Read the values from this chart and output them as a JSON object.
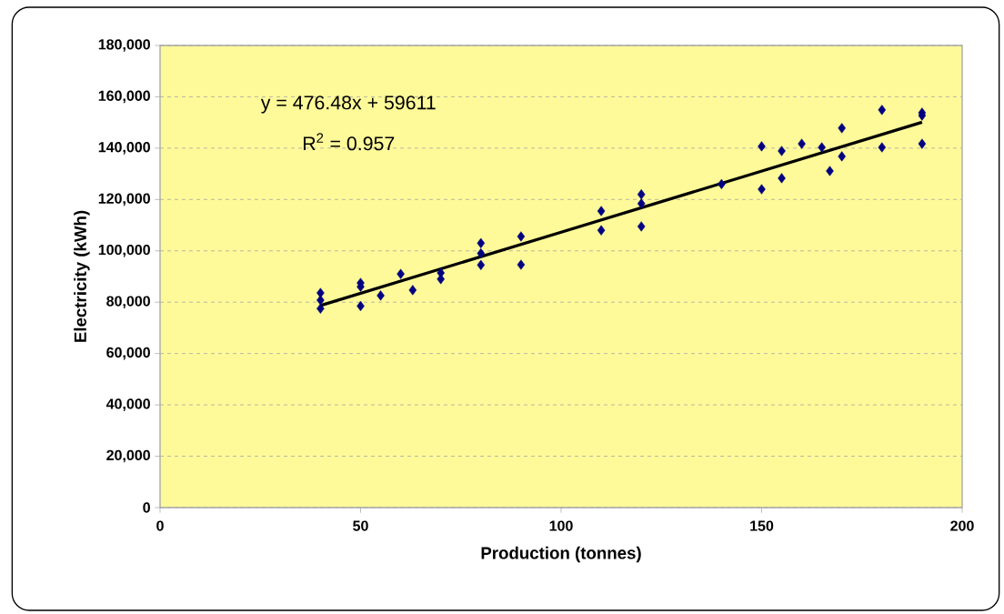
{
  "chart_data": {
    "type": "scatter",
    "xlabel": "Production (tonnes)",
    "ylabel": "Electricity (kWh)",
    "annotations": [
      "y = 476.48x + 59611",
      "R$^{2}$ = 0.957"
    ],
    "xlim": [
      0,
      200
    ],
    "xticks": [
      0,
      50,
      100,
      150,
      200
    ],
    "ylim": [
      0,
      180000
    ],
    "yticks": [
      0,
      {
        "value": 20000,
        "label": "20,000"
      },
      {
        "value": 40000,
        "label": "40,000"
      },
      {
        "value": 60000,
        "label": "60,000"
      },
      {
        "value": 80000,
        "label": "80,000"
      },
      {
        "value": 100000,
        "label": "100,000"
      },
      {
        "value": 120000,
        "label": "120,000"
      },
      {
        "value": 140000,
        "label": "140,000"
      },
      {
        "value": 160000,
        "label": "160,000"
      },
      {
        "value": 180000,
        "label": "180,000"
      }
    ],
    "grid": "y",
    "marker": "diamond",
    "series": [
      {
        "color": "#000080",
        "x": [
          40,
          40,
          40,
          50,
          50,
          50,
          55,
          60,
          63,
          70,
          70,
          80,
          80,
          80,
          90,
          90,
          110,
          110,
          120,
          120,
          120,
          140,
          150,
          150,
          155,
          155,
          160,
          165,
          167,
          170,
          170,
          180,
          180,
          190,
          190,
          190
        ],
        "values": [
          83600,
          80800,
          77500,
          87500,
          86000,
          78500,
          82600,
          91000,
          84700,
          91400,
          89000,
          103000,
          99000,
          94500,
          105600,
          94600,
          115500,
          108000,
          122000,
          118400,
          109500,
          126000,
          140700,
          124000,
          138900,
          128300,
          141700,
          140300,
          131100,
          147800,
          136800,
          154900,
          140300,
          153800,
          152700,
          141700
        ]
      },
      {
        "type": "line",
        "marker": "none",
        "color": "#000000",
        "x": [
          40,
          190
        ],
        "values": [
          78700,
          150100
        ]
      }
    ]
  }
}
